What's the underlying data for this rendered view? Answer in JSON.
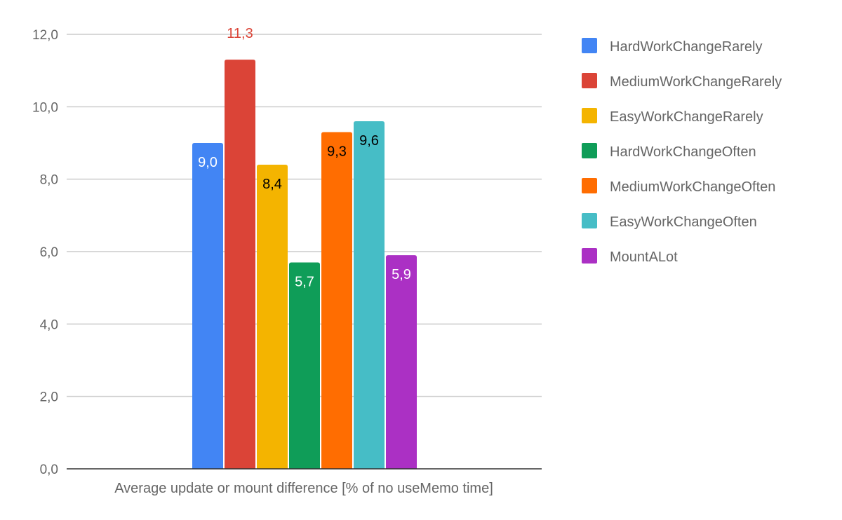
{
  "chart_data": {
    "type": "bar",
    "title": "",
    "xlabel": "Average update or mount difference [% of no useMemo time]",
    "ylabel": "",
    "ylim": [
      0,
      12
    ],
    "yticks": [
      "0,0",
      "2,0",
      "4,0",
      "6,0",
      "8,0",
      "10,0",
      "12,0"
    ],
    "grid": true,
    "legend_position": "right",
    "categories": [
      "Average update or mount difference [% of no useMemo time]"
    ],
    "series": [
      {
        "name": "HardWorkChangeRarely",
        "values": [
          9.0
        ],
        "label": "9,0",
        "color": "#4285f4",
        "label_color": "#ffffff",
        "label_position": "inside"
      },
      {
        "name": "MediumWorkChangeRarely",
        "values": [
          11.3
        ],
        "label": "11,3",
        "color": "#db4437",
        "label_color": "#db4437",
        "label_position": "above"
      },
      {
        "name": "EasyWorkChangeRarely",
        "values": [
          8.4
        ],
        "label": "8,4",
        "color": "#f4b400",
        "label_color": "#000000",
        "label_position": "inside"
      },
      {
        "name": "HardWorkChangeOften",
        "values": [
          5.7
        ],
        "label": "5,7",
        "color": "#0f9d58",
        "label_color": "#ffffff",
        "label_position": "inside"
      },
      {
        "name": "MediumWorkChangeOften",
        "values": [
          9.3
        ],
        "label": "9,3",
        "color": "#ff6d01",
        "label_color": "#000000",
        "label_position": "inside"
      },
      {
        "name": "EasyWorkChangeOften",
        "values": [
          9.6
        ],
        "label": "9,6",
        "color": "#46bdc6",
        "label_color": "#000000",
        "label_position": "inside"
      },
      {
        "name": "MountALot",
        "values": [
          5.9
        ],
        "label": "5,9",
        "color": "#ab30c4",
        "label_color": "#ffffff",
        "label_position": "inside"
      }
    ]
  }
}
